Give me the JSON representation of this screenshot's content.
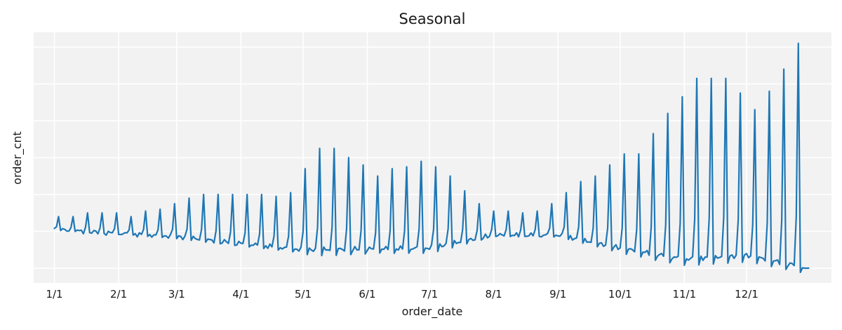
{
  "chart_data": {
    "type": "line",
    "title": "Seasonal",
    "xlabel": "order_date",
    "ylabel": "order_cnt",
    "x_tick_labels": [
      "1/1",
      "2/1",
      "3/1",
      "4/1",
      "5/1",
      "6/1",
      "7/1",
      "8/1",
      "9/1",
      "10/1",
      "11/1",
      "12/1"
    ],
    "x_tick_days": [
      0,
      31,
      59,
      90,
      120,
      151,
      181,
      212,
      243,
      273,
      304,
      334
    ],
    "y_tick_labels_visible": false,
    "grid": true,
    "legend": "none",
    "ylim": [
      -0.4,
      6.4
    ],
    "xlim": [
      -10,
      375
    ],
    "series": [
      {
        "color": "#1f77b4",
        "days": 365,
        "baseline_keypoints": [
          [
            0,
            1.05
          ],
          [
            60,
            0.85
          ],
          [
            120,
            0.5
          ],
          [
            181,
            0.55
          ],
          [
            212,
            0.9
          ],
          [
            243,
            0.9
          ],
          [
            273,
            0.55
          ],
          [
            304,
            0.25
          ],
          [
            334,
            0.35
          ],
          [
            365,
            0.0
          ]
        ],
        "weekly_peaks": [
          {
            "day": 2,
            "value": 1.4
          },
          {
            "day": 9,
            "value": 1.4
          },
          {
            "day": 16,
            "value": 1.5
          },
          {
            "day": 23,
            "value": 1.5
          },
          {
            "day": 30,
            "value": 1.5
          },
          {
            "day": 37,
            "value": 1.4
          },
          {
            "day": 44,
            "value": 1.55
          },
          {
            "day": 51,
            "value": 1.6
          },
          {
            "day": 58,
            "value": 1.75
          },
          {
            "day": 65,
            "value": 1.9
          },
          {
            "day": 72,
            "value": 2.0
          },
          {
            "day": 79,
            "value": 2.0
          },
          {
            "day": 86,
            "value": 2.0
          },
          {
            "day": 93,
            "value": 2.0
          },
          {
            "day": 100,
            "value": 2.0
          },
          {
            "day": 107,
            "value": 1.95
          },
          {
            "day": 114,
            "value": 2.05
          },
          {
            "day": 121,
            "value": 2.7
          },
          {
            "day": 128,
            "value": 3.25
          },
          {
            "day": 135,
            "value": 3.25
          },
          {
            "day": 142,
            "value": 3.0
          },
          {
            "day": 149,
            "value": 2.8
          },
          {
            "day": 156,
            "value": 2.5
          },
          {
            "day": 163,
            "value": 2.7
          },
          {
            "day": 170,
            "value": 2.75
          },
          {
            "day": 177,
            "value": 2.9
          },
          {
            "day": 184,
            "value": 2.75
          },
          {
            "day": 191,
            "value": 2.5
          },
          {
            "day": 198,
            "value": 2.1
          },
          {
            "day": 205,
            "value": 1.75
          },
          {
            "day": 212,
            "value": 1.55
          },
          {
            "day": 219,
            "value": 1.55
          },
          {
            "day": 226,
            "value": 1.5
          },
          {
            "day": 233,
            "value": 1.55
          },
          {
            "day": 240,
            "value": 1.75
          },
          {
            "day": 247,
            "value": 2.05
          },
          {
            "day": 254,
            "value": 2.35
          },
          {
            "day": 261,
            "value": 2.5
          },
          {
            "day": 268,
            "value": 2.8
          },
          {
            "day": 275,
            "value": 3.1
          },
          {
            "day": 282,
            "value": 3.1
          },
          {
            "day": 289,
            "value": 3.65
          },
          {
            "day": 296,
            "value": 4.2
          },
          {
            "day": 303,
            "value": 4.65
          },
          {
            "day": 310,
            "value": 5.15
          },
          {
            "day": 317,
            "value": 5.15
          },
          {
            "day": 324,
            "value": 5.15
          },
          {
            "day": 331,
            "value": 4.75
          },
          {
            "day": 338,
            "value": 4.3
          },
          {
            "day": 345,
            "value": 4.8
          },
          {
            "day": 352,
            "value": 5.4
          },
          {
            "day": 359,
            "value": 6.1
          }
        ]
      }
    ]
  }
}
